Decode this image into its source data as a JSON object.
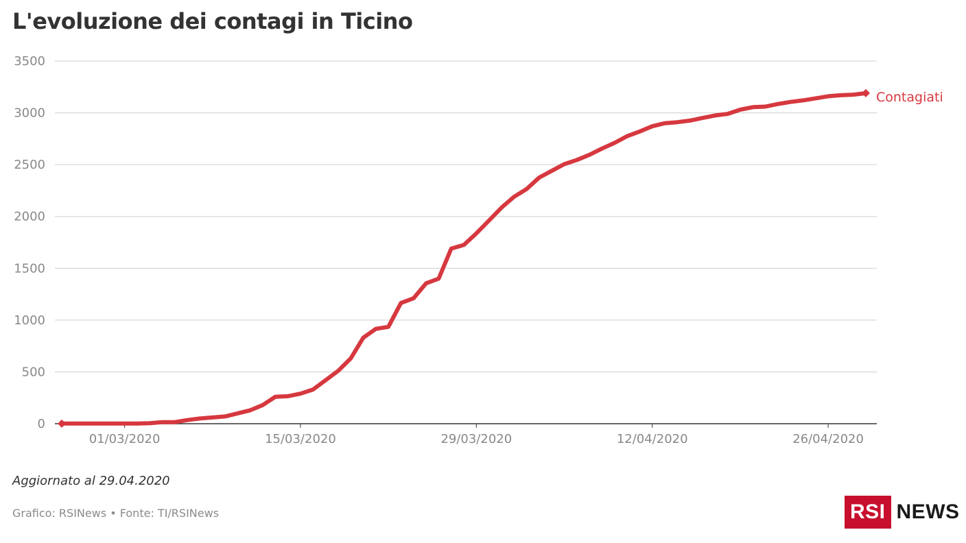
{
  "title": "L'evoluzione dei contagi in Ticino",
  "updated": "Aggiornato al 29.04.2020",
  "source": "Grafico: RSINews • Fonte: TI/RSINews",
  "logo": {
    "rsi": "RSI",
    "news": "NEWS"
  },
  "colors": {
    "line": "#d6383f",
    "grid": "#cfcfcf",
    "axis": "#333333",
    "tick": "#888888",
    "brand": "#c8102e"
  },
  "chart_data": {
    "type": "line",
    "title": "L'evoluzione dei contagi in Ticino",
    "xlabel": "",
    "ylabel": "",
    "ylim": [
      0,
      3500
    ],
    "yticks": [
      0,
      500,
      1000,
      1500,
      2000,
      2500,
      3000,
      3500
    ],
    "xtick_labels": [
      "01/03/2020",
      "15/03/2020",
      "29/03/2020",
      "12/04/2020",
      "26/04/2020"
    ],
    "grid": true,
    "series": [
      {
        "name": "Contagiati",
        "x": [
          "25/02/2020",
          "26/02/2020",
          "27/02/2020",
          "28/02/2020",
          "29/02/2020",
          "01/03/2020",
          "02/03/2020",
          "03/03/2020",
          "04/03/2020",
          "05/03/2020",
          "06/03/2020",
          "07/03/2020",
          "08/03/2020",
          "09/03/2020",
          "10/03/2020",
          "11/03/2020",
          "12/03/2020",
          "13/03/2020",
          "14/03/2020",
          "15/03/2020",
          "16/03/2020",
          "17/03/2020",
          "18/03/2020",
          "19/03/2020",
          "20/03/2020",
          "21/03/2020",
          "22/03/2020",
          "23/03/2020",
          "24/03/2020",
          "25/03/2020",
          "26/03/2020",
          "27/03/2020",
          "28/03/2020",
          "29/03/2020",
          "30/03/2020",
          "31/03/2020",
          "01/04/2020",
          "02/04/2020",
          "03/04/2020",
          "04/04/2020",
          "05/04/2020",
          "06/04/2020",
          "07/04/2020",
          "08/04/2020",
          "09/04/2020",
          "10/04/2020",
          "11/04/2020",
          "12/04/2020",
          "13/04/2020",
          "14/04/2020",
          "15/04/2020",
          "16/04/2020",
          "17/04/2020",
          "18/04/2020",
          "19/04/2020",
          "20/04/2020",
          "21/04/2020",
          "22/04/2020",
          "23/04/2020",
          "24/04/2020",
          "25/04/2020",
          "26/04/2020",
          "27/04/2020",
          "28/04/2020",
          "29/04/2020"
        ],
        "values": [
          1,
          1,
          1,
          1,
          1,
          1,
          1,
          5,
          15,
          15,
          35,
          50,
          60,
          70,
          100,
          130,
          180,
          260,
          265,
          290,
          330,
          420,
          510,
          630,
          830,
          915,
          935,
          1165,
          1210,
          1355,
          1400,
          1690,
          1725,
          1837,
          1960,
          2085,
          2190,
          2265,
          2375,
          2440,
          2505,
          2545,
          2595,
          2655,
          2710,
          2775,
          2820,
          2870,
          2900,
          2910,
          2925,
          2950,
          2975,
          2990,
          3030,
          3055,
          3060,
          3085,
          3105,
          3120,
          3140,
          3160,
          3170,
          3175,
          3190
        ]
      }
    ]
  }
}
